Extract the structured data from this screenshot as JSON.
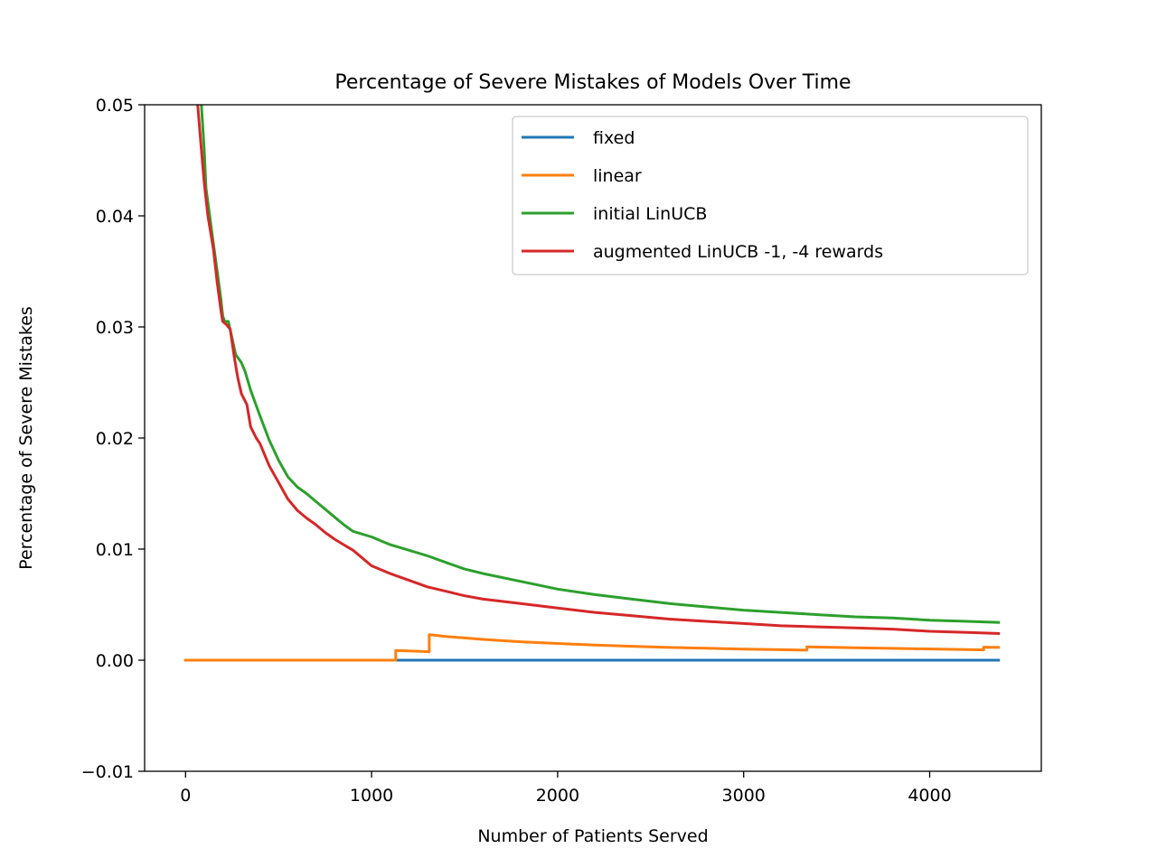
{
  "chart_data": {
    "type": "line",
    "title": "Percentage of Severe Mistakes of Models Over Time",
    "xlabel": "Number of Patients Served",
    "ylabel": "Percentage of Severe Mistakes",
    "xlim": [
      -220,
      4600
    ],
    "ylim": [
      -0.01,
      0.05
    ],
    "xticks": [
      0,
      1000,
      2000,
      3000,
      4000
    ],
    "xtick_labels": [
      "0",
      "1000",
      "2000",
      "3000",
      "4000"
    ],
    "yticks": [
      -0.01,
      0.0,
      0.01,
      0.02,
      0.03,
      0.04,
      0.05
    ],
    "ytick_labels": [
      "−0.01",
      "0.00",
      "0.01",
      "0.02",
      "0.03",
      "0.04",
      "0.05"
    ],
    "grid": false,
    "legend_position": "top-right",
    "series": [
      {
        "name": "fixed",
        "color": "#1f77b4",
        "points": [
          [
            0,
            0.0
          ],
          [
            4370,
            0.0
          ]
        ]
      },
      {
        "name": "linear",
        "color": "#ff7f0e",
        "points": [
          [
            0,
            0.0
          ],
          [
            1130,
            0.0
          ],
          [
            1130,
            0.00088
          ],
          [
            1300,
            0.00077
          ],
          [
            1310,
            0.00076
          ],
          [
            1310,
            0.00229
          ],
          [
            1400,
            0.00214
          ],
          [
            1600,
            0.00187
          ],
          [
            1800,
            0.00166
          ],
          [
            2000,
            0.0015
          ],
          [
            2200,
            0.00136
          ],
          [
            2400,
            0.00125
          ],
          [
            2600,
            0.00115
          ],
          [
            2800,
            0.00107
          ],
          [
            3000,
            0.001
          ],
          [
            3200,
            0.00094
          ],
          [
            3340,
            0.0009
          ],
          [
            3340,
            0.0012
          ],
          [
            3600,
            0.00111
          ],
          [
            3900,
            0.00103
          ],
          [
            4200,
            0.00095
          ],
          [
            4290,
            0.00093
          ],
          [
            4290,
            0.00117
          ],
          [
            4370,
            0.00115
          ]
        ]
      },
      {
        "name": "initial LinUCB",
        "color": "#2ca02c",
        "points": [
          [
            85,
            0.05
          ],
          [
            100,
            0.046
          ],
          [
            110,
            0.0425
          ],
          [
            130,
            0.04
          ],
          [
            150,
            0.0375
          ],
          [
            170,
            0.035
          ],
          [
            190,
            0.0325
          ],
          [
            200,
            0.031
          ],
          [
            210,
            0.0305
          ],
          [
            230,
            0.0305
          ],
          [
            250,
            0.029
          ],
          [
            270,
            0.0275
          ],
          [
            300,
            0.0268
          ],
          [
            320,
            0.026
          ],
          [
            350,
            0.0243
          ],
          [
            400,
            0.022
          ],
          [
            450,
            0.0198
          ],
          [
            500,
            0.018
          ],
          [
            550,
            0.0165
          ],
          [
            600,
            0.0156
          ],
          [
            650,
            0.015
          ],
          [
            700,
            0.0143
          ],
          [
            750,
            0.0136
          ],
          [
            800,
            0.0129
          ],
          [
            850,
            0.0122
          ],
          [
            900,
            0.0116
          ],
          [
            1000,
            0.0111
          ],
          [
            1100,
            0.0104
          ],
          [
            1200,
            0.0099
          ],
          [
            1300,
            0.0094
          ],
          [
            1400,
            0.0088
          ],
          [
            1500,
            0.0082
          ],
          [
            1600,
            0.0078
          ],
          [
            1800,
            0.0071
          ],
          [
            2000,
            0.0064
          ],
          [
            2200,
            0.0059
          ],
          [
            2400,
            0.0055
          ],
          [
            2600,
            0.0051
          ],
          [
            2800,
            0.0048
          ],
          [
            3000,
            0.0045
          ],
          [
            3200,
            0.0043
          ],
          [
            3400,
            0.0041
          ],
          [
            3600,
            0.0039
          ],
          [
            3800,
            0.0038
          ],
          [
            4000,
            0.0036
          ],
          [
            4200,
            0.0035
          ],
          [
            4370,
            0.0034
          ]
        ]
      },
      {
        "name": "augmented LinUCB -1, -4 rewards",
        "color": "#d62728",
        "points": [
          [
            65,
            0.05
          ],
          [
            80,
            0.047
          ],
          [
            100,
            0.043
          ],
          [
            120,
            0.04
          ],
          [
            150,
            0.037
          ],
          [
            170,
            0.034
          ],
          [
            190,
            0.0315
          ],
          [
            200,
            0.0305
          ],
          [
            220,
            0.0302
          ],
          [
            240,
            0.0298
          ],
          [
            260,
            0.0275
          ],
          [
            280,
            0.0255
          ],
          [
            300,
            0.024
          ],
          [
            330,
            0.023
          ],
          [
            350,
            0.021
          ],
          [
            380,
            0.02
          ],
          [
            400,
            0.0195
          ],
          [
            450,
            0.0175
          ],
          [
            500,
            0.016
          ],
          [
            550,
            0.0145
          ],
          [
            600,
            0.0135
          ],
          [
            650,
            0.0128
          ],
          [
            700,
            0.0122
          ],
          [
            750,
            0.0115
          ],
          [
            800,
            0.0109
          ],
          [
            850,
            0.0104
          ],
          [
            900,
            0.0099
          ],
          [
            1000,
            0.0085
          ],
          [
            1100,
            0.0078
          ],
          [
            1200,
            0.0072
          ],
          [
            1300,
            0.0066
          ],
          [
            1400,
            0.0062
          ],
          [
            1500,
            0.0058
          ],
          [
            1600,
            0.0055
          ],
          [
            1800,
            0.0051
          ],
          [
            2000,
            0.0047
          ],
          [
            2200,
            0.0043
          ],
          [
            2400,
            0.004
          ],
          [
            2600,
            0.0037
          ],
          [
            2800,
            0.0035
          ],
          [
            3000,
            0.0033
          ],
          [
            3200,
            0.0031
          ],
          [
            3400,
            0.003
          ],
          [
            3600,
            0.0029
          ],
          [
            3800,
            0.0028
          ],
          [
            4000,
            0.0026
          ],
          [
            4200,
            0.0025
          ],
          [
            4370,
            0.0024
          ]
        ]
      }
    ]
  }
}
